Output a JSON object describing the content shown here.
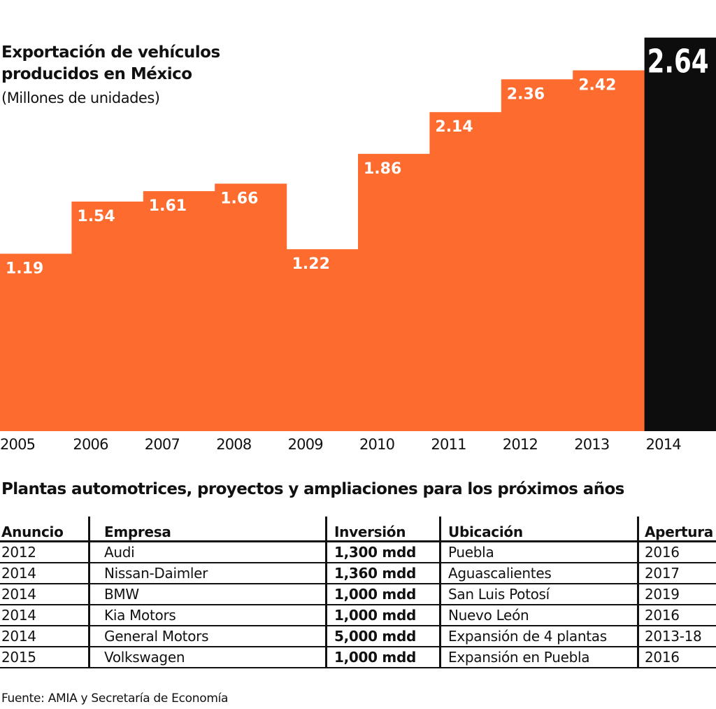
{
  "chart_data": {
    "type": "bar",
    "title": "Exportación de vehículos producidos en México",
    "subtitle": "(Millones de unidades)",
    "xlabel": "",
    "ylabel": "Millones de unidades",
    "categories": [
      "2005",
      "2006",
      "2007",
      "2008",
      "2009",
      "2010",
      "2011",
      "2012",
      "2013",
      "2014"
    ],
    "values": [
      1.19,
      1.54,
      1.61,
      1.66,
      1.22,
      1.86,
      2.14,
      2.36,
      2.42,
      2.64
    ],
    "value_labels": [
      "1.19",
      "1.54",
      "1.61",
      "1.66",
      "1.22",
      "1.86",
      "2.14",
      "2.36",
      "2.42",
      "2.64"
    ],
    "highlight_index": 9,
    "ylim": [
      0,
      2.9
    ],
    "grid": false,
    "legend": "none",
    "colors": {
      "bar": "#fd6b2f",
      "highlight": "#0d0d0d",
      "label": "#ffffff"
    }
  },
  "header": {
    "title_line1": "Exportación de vehículos",
    "title_line2": "producidos en México",
    "subtitle": "(Millones de unidades)"
  },
  "table": {
    "title": "Plantas automotrices, proyectos y ampliaciones para los próximos años",
    "columns": [
      "Anuncio",
      "Empresa",
      "Inversión",
      "Ubicación",
      "Apertura"
    ],
    "rows": [
      [
        "2012",
        "Audi",
        "1,300 mdd",
        "Puebla",
        "2016"
      ],
      [
        "2014",
        "Nissan-Daimler",
        "1,360 mdd",
        "Aguascalientes",
        "2017"
      ],
      [
        "2014",
        "BMW",
        "1,000 mdd",
        "San Luis Potosí",
        "2019"
      ],
      [
        "2014",
        "Kia Motors",
        "1,000 mdd",
        "Nuevo León",
        "2016"
      ],
      [
        "2014",
        "General Motors",
        "5,000 mdd",
        "Expansión de 4 plantas",
        "2013-18"
      ],
      [
        "2015",
        "Volkswagen",
        "1,000 mdd",
        "Expansión en Puebla",
        "2016"
      ]
    ]
  },
  "footer": {
    "source": "Fuente: AMIA y Secretaría de Economía"
  }
}
